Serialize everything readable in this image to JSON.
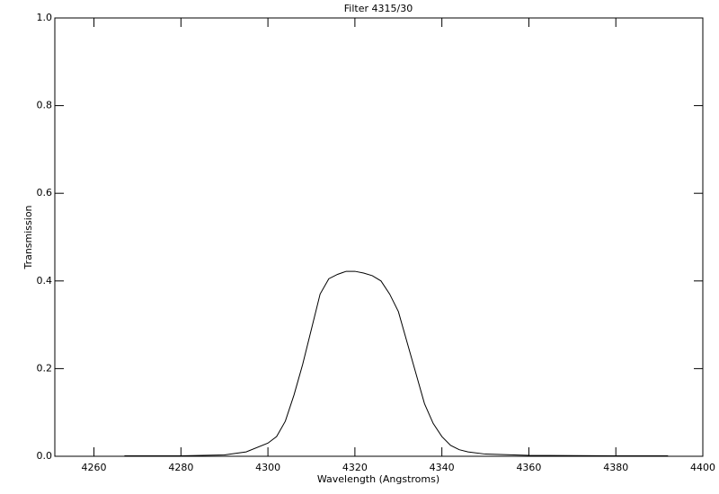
{
  "chart_data": {
    "type": "line",
    "title": "Filter 4315/30",
    "x_label": "Wavelength (Angstroms)",
    "y_label": "Transmission",
    "x": [
      4267,
      4280,
      4290,
      4295,
      4300,
      4302,
      4304,
      4306,
      4308,
      4310,
      4312,
      4314,
      4316,
      4318,
      4320,
      4322,
      4324,
      4326,
      4328,
      4330,
      4332,
      4334,
      4336,
      4338,
      4340,
      4342,
      4344,
      4346,
      4350,
      4360,
      4380,
      4392
    ],
    "series": [
      {
        "name": "Transmission",
        "color": "#000000",
        "values": [
          0.001,
          0.001,
          0.003,
          0.01,
          0.03,
          0.045,
          0.08,
          0.14,
          0.21,
          0.29,
          0.37,
          0.405,
          0.415,
          0.422,
          0.422,
          0.418,
          0.412,
          0.4,
          0.37,
          0.33,
          0.26,
          0.19,
          0.12,
          0.075,
          0.045,
          0.025,
          0.015,
          0.01,
          0.005,
          0.002,
          0.001,
          0.001
        ]
      }
    ],
    "xlim": [
      4251,
      4400
    ],
    "xticks": [
      4260,
      4280,
      4300,
      4320,
      4340,
      4360,
      4380,
      4400
    ],
    "ylim": [
      0,
      1
    ],
    "yticks": [
      {
        "value": 0,
        "label": "0.0"
      },
      0.2,
      0.4,
      0.6,
      0.8,
      {
        "value": 1,
        "label": "1.0"
      }
    ]
  }
}
